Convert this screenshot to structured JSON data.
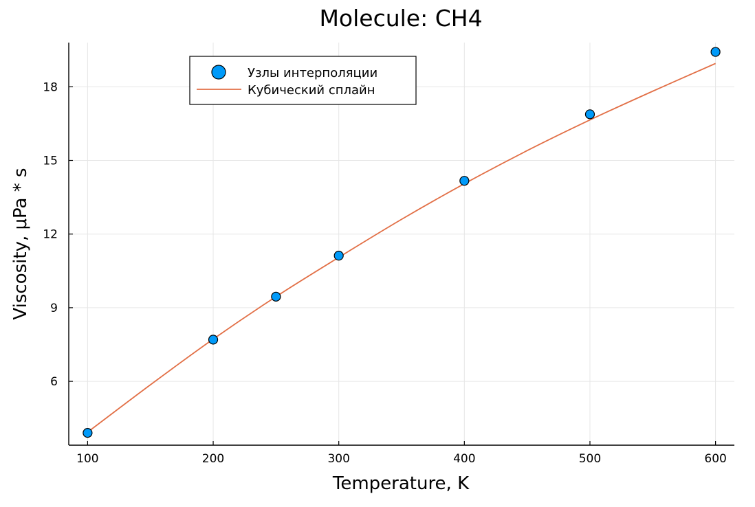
{
  "chart_data": {
    "type": "scatter",
    "title": "Molecule: CH4",
    "xlabel": "Temperature, K",
    "ylabel": "Viscosity, μPa * s",
    "xlim": [
      85,
      615
    ],
    "ylim": [
      3.4,
      19.8
    ],
    "x_ticks": [
      100,
      200,
      300,
      400,
      500,
      600
    ],
    "y_ticks": [
      6,
      9,
      12,
      15,
      18
    ],
    "grid": true,
    "legend_position": "top-left",
    "series": [
      {
        "name": "Узлы интерполяции",
        "kind": "scatter",
        "color": "#009af9",
        "points": [
          {
            "x": 100,
            "y": 3.9
          },
          {
            "x": 200,
            "y": 7.7
          },
          {
            "x": 250,
            "y": 9.45
          },
          {
            "x": 300,
            "y": 11.12
          },
          {
            "x": 400,
            "y": 14.17
          },
          {
            "x": 500,
            "y": 16.88
          },
          {
            "x": 600,
            "y": 19.42
          }
        ]
      },
      {
        "name": "Кубический сплайн",
        "kind": "line",
        "color": "#e26f46",
        "points": [
          {
            "x": 100,
            "y": 3.93
          },
          {
            "x": 150,
            "y": 5.86
          },
          {
            "x": 200,
            "y": 7.72
          },
          {
            "x": 250,
            "y": 9.45
          },
          {
            "x": 300,
            "y": 11.05
          },
          {
            "x": 350,
            "y": 12.6
          },
          {
            "x": 400,
            "y": 14.05
          },
          {
            "x": 450,
            "y": 15.4
          },
          {
            "x": 500,
            "y": 16.65
          },
          {
            "x": 550,
            "y": 17.82
          },
          {
            "x": 600,
            "y": 18.95
          }
        ]
      }
    ]
  }
}
